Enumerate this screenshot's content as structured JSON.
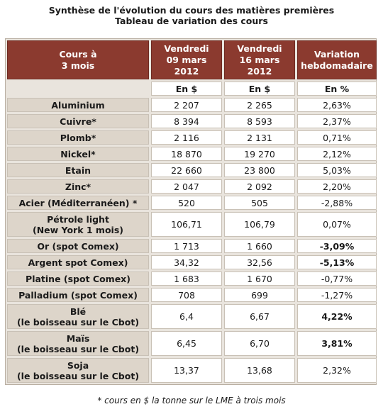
{
  "title": {
    "line1": "Synthèse de l'évolution du cours des matières premières",
    "line2": "Tableau de variation des cours"
  },
  "table": {
    "headers": {
      "product": [
        "Cours à",
        "3 mois"
      ],
      "date1": [
        "Vendredi",
        "09 mars",
        "2012"
      ],
      "date2": [
        "Vendredi",
        "16 mars",
        "2012"
      ],
      "variation": [
        "Variation",
        "hebdomadaire"
      ]
    },
    "units": {
      "date1": "En $",
      "date2": "En $",
      "variation": "En %"
    },
    "rows": [
      {
        "name": [
          "Aluminium"
        ],
        "v1": "2 207",
        "v2": "2 265",
        "var": "2,63%",
        "bold": false
      },
      {
        "name": [
          "Cuivre*"
        ],
        "v1": "8 394",
        "v2": "8 593",
        "var": "2,37%",
        "bold": false
      },
      {
        "name": [
          "Plomb*"
        ],
        "v1": "2 116",
        "v2": "2 131",
        "var": "0,71%",
        "bold": false
      },
      {
        "name": [
          "Nickel*"
        ],
        "v1": "18 870",
        "v2": "19 270",
        "var": "2,12%",
        "bold": false
      },
      {
        "name": [
          "Etain"
        ],
        "v1": "22 660",
        "v2": "23 800",
        "var": "5,03%",
        "bold": false
      },
      {
        "name": [
          "Zinc*"
        ],
        "v1": "2 047",
        "v2": "2 092",
        "var": "2,20%",
        "bold": false
      },
      {
        "name": [
          "Acier (Méditerranéen) *"
        ],
        "v1": "520",
        "v2": "505",
        "var": "-2,88%",
        "bold": false
      },
      {
        "name": [
          "Pétrole light",
          "(New York 1 mois)"
        ],
        "v1": "106,71",
        "v2": "106,79",
        "var": "0,07%",
        "bold": false
      },
      {
        "name": [
          "Or (spot Comex)"
        ],
        "v1": "1 713",
        "v2": "1 660",
        "var": "-3,09%",
        "bold": true
      },
      {
        "name": [
          "Argent spot Comex)"
        ],
        "v1": "34,32",
        "v2": "32,56",
        "var": "-5,13%",
        "bold": true
      },
      {
        "name": [
          "Platine (spot Comex)"
        ],
        "v1": "1 683",
        "v2": "1 670",
        "var": "-0,77%",
        "bold": false
      },
      {
        "name": [
          "Palladium (spot Comex)"
        ],
        "v1": "708",
        "v2": "699",
        "var": "-1,27%",
        "bold": false
      },
      {
        "name": [
          "Blé",
          "(le boisseau sur le Cbot)"
        ],
        "v1": "6,4",
        "v2": "6,67",
        "var": "4,22%",
        "bold": true
      },
      {
        "name": [
          "Maïs",
          "(le boisseau sur le Cbot)"
        ],
        "v1": "6,45",
        "v2": "6,70",
        "var": "3,81%",
        "bold": true
      },
      {
        "name": [
          "Soja",
          "(le boisseau sur le Cbot)"
        ],
        "v1": "13,37",
        "v2": "13,68",
        "var": "2,32%",
        "bold": false
      }
    ]
  },
  "footnote": "* cours en $ la tonne sur le LME à trois mois"
}
